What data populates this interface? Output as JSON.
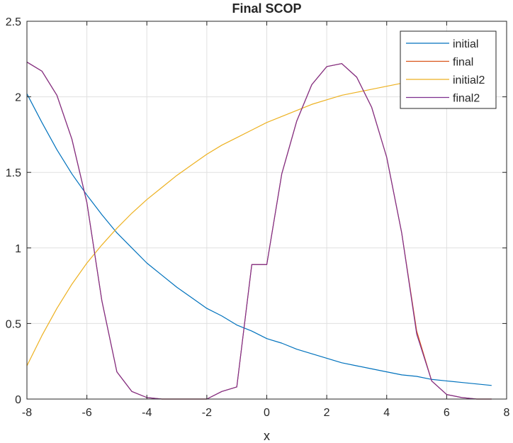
{
  "chart_data": {
    "type": "line",
    "title": "Final SCOP",
    "xlabel": "x",
    "ylabel": "",
    "xlim": [
      -8,
      8
    ],
    "ylim": [
      0,
      2.5
    ],
    "xticks": [
      -8,
      -6,
      -4,
      -2,
      0,
      2,
      4,
      6,
      8
    ],
    "yticks": [
      0,
      0.5,
      1,
      1.5,
      2,
      2.5
    ],
    "xtick_labels": [
      "-8",
      "-6",
      "-4",
      "-2",
      "0",
      "2",
      "4",
      "6",
      "8"
    ],
    "ytick_labels": [
      "0",
      "0.5",
      "1",
      "1.5",
      "2",
      "2.5"
    ],
    "grid": true,
    "legend_position": "top-right",
    "series": [
      {
        "name": "initial",
        "color": "#0072BD",
        "x": [
          -8.0,
          -7.5,
          -7.0,
          -6.5,
          -6.0,
          -5.5,
          -5.0,
          -4.5,
          -4.0,
          -3.5,
          -3.0,
          -2.5,
          -2.0,
          -1.5,
          -1.0,
          -0.5,
          0.0,
          0.5,
          1.0,
          1.5,
          2.0,
          2.5,
          3.0,
          3.5,
          4.0,
          4.5,
          5.0,
          5.5,
          6.0,
          6.5,
          7.0,
          7.5
        ],
        "y": [
          2.02,
          1.83,
          1.65,
          1.49,
          1.35,
          1.22,
          1.1,
          1.0,
          0.9,
          0.82,
          0.74,
          0.67,
          0.6,
          0.55,
          0.49,
          0.45,
          0.4,
          0.37,
          0.33,
          0.3,
          0.27,
          0.24,
          0.22,
          0.2,
          0.18,
          0.16,
          0.15,
          0.13,
          0.12,
          0.11,
          0.1,
          0.09
        ]
      },
      {
        "name": "final",
        "color": "#D95319",
        "x": [
          -8.0,
          -7.5,
          -7.0,
          -6.5,
          -6.0,
          -5.5,
          -5.0,
          -4.5,
          -4.0,
          -3.5,
          -3.0,
          -2.5,
          -2.0,
          -1.5,
          -1.0,
          -0.5,
          0.0,
          0.5,
          1.0,
          1.5,
          2.0,
          2.5,
          3.0,
          3.5,
          4.0,
          4.5,
          5.0,
          5.5,
          6.0,
          6.5,
          7.0,
          7.5
        ],
        "y": [
          2.23,
          2.17,
          2.01,
          1.72,
          1.3,
          0.65,
          0.18,
          0.05,
          0.01,
          0.0,
          0.0,
          0.0,
          0.0,
          0.05,
          0.08,
          0.89,
          0.89,
          1.49,
          1.84,
          2.08,
          2.2,
          2.22,
          2.13,
          1.93,
          1.6,
          1.1,
          0.45,
          0.12,
          0.03,
          0.01,
          0.0,
          0.0
        ]
      },
      {
        "name": "initial2",
        "color": "#EDB120",
        "x": [
          -8.0,
          -7.5,
          -7.0,
          -6.5,
          -6.0,
          -5.5,
          -5.0,
          -4.5,
          -4.0,
          -3.5,
          -3.0,
          -2.5,
          -2.0,
          -1.5,
          -1.0,
          -0.5,
          0.0,
          0.5,
          1.0,
          1.5,
          2.0,
          2.5,
          3.0,
          3.5,
          4.0,
          4.5,
          5.0,
          5.5,
          6.0,
          6.5,
          7.0,
          7.5
        ],
        "y": [
          0.22,
          0.42,
          0.6,
          0.76,
          0.9,
          1.02,
          1.13,
          1.23,
          1.32,
          1.4,
          1.48,
          1.55,
          1.62,
          1.68,
          1.73,
          1.78,
          1.83,
          1.87,
          1.91,
          1.95,
          1.98,
          2.01,
          2.03,
          2.05,
          2.07,
          2.09,
          2.11,
          2.13,
          2.15,
          2.17,
          2.18,
          2.19
        ]
      },
      {
        "name": "final2",
        "color": "#7E2F8E",
        "x": [
          -8.0,
          -7.5,
          -7.0,
          -6.5,
          -6.0,
          -5.5,
          -5.0,
          -4.5,
          -4.0,
          -3.5,
          -3.0,
          -2.5,
          -2.0,
          -1.5,
          -1.0,
          -0.5,
          0.0,
          0.5,
          1.0,
          1.5,
          2.0,
          2.5,
          3.0,
          3.5,
          4.0,
          4.5,
          5.0,
          5.5,
          6.0,
          6.5,
          7.0,
          7.5
        ],
        "y": [
          2.23,
          2.17,
          2.01,
          1.72,
          1.3,
          0.65,
          0.18,
          0.05,
          0.01,
          0.0,
          0.0,
          0.0,
          0.0,
          0.05,
          0.08,
          0.89,
          0.89,
          1.49,
          1.84,
          2.08,
          2.2,
          2.22,
          2.13,
          1.93,
          1.6,
          1.1,
          0.43,
          0.12,
          0.03,
          0.01,
          0.0,
          0.0
        ]
      }
    ]
  }
}
